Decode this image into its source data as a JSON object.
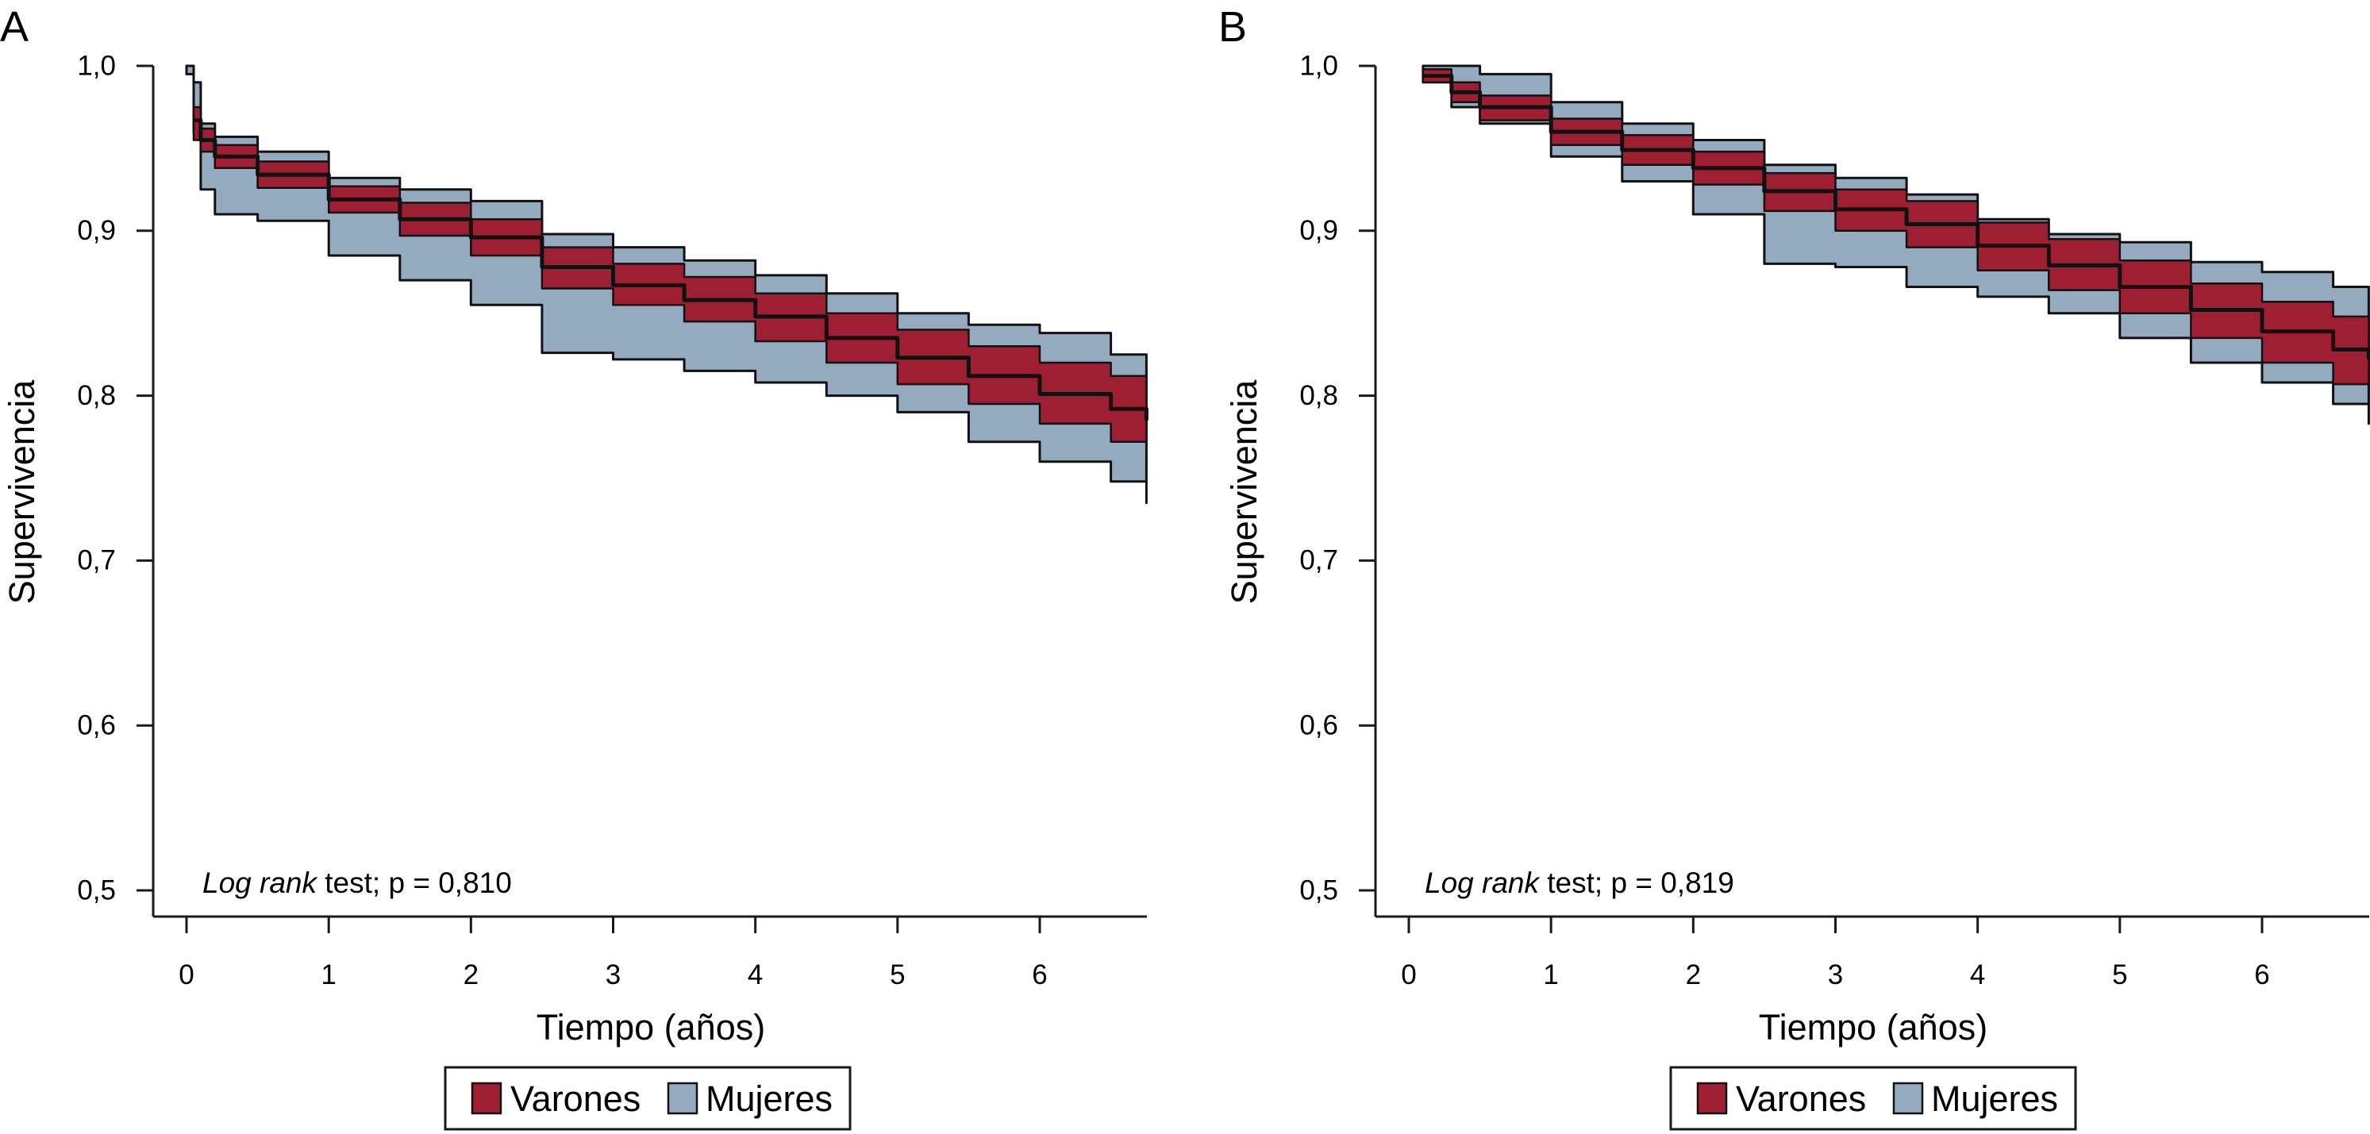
{
  "colors": {
    "varones": "#9e1f32",
    "mujeres": "#94aabf",
    "line": "#111111",
    "axis": "#1a1a1a"
  },
  "legend": {
    "varones": "Varones",
    "mujeres": "Mujeres"
  },
  "chart_data": [
    {
      "panel": "A",
      "type": "line",
      "title": "",
      "xlabel": "Tiempo (años)",
      "ylabel": "Supervivencia",
      "xlim": [
        -0.2,
        6.75
      ],
      "ylim": [
        0.48,
        1.0
      ],
      "xticks": [
        0,
        1,
        2,
        3,
        4,
        5,
        6
      ],
      "xtick_labels": [
        "0",
        "1",
        "2",
        "3",
        "4",
        "5",
        "6"
      ],
      "yticks": [
        0.5,
        0.6,
        0.7,
        0.8,
        0.9,
        1.0
      ],
      "ytick_labels": [
        "0,5",
        "0,6",
        "0,7",
        "0,8",
        "0,9",
        "1,0"
      ],
      "annotation": {
        "italic": "Log rank",
        "text": " test; p = 0,810"
      },
      "series": [
        {
          "name": "Mujeres",
          "x": [
            0.0,
            0.05,
            0.1,
            0.2,
            0.5,
            1.0,
            1.5,
            2.0,
            2.5,
            3.0,
            3.5,
            4.0,
            4.5,
            5.0,
            5.5,
            6.0,
            6.5,
            6.75
          ],
          "upper": [
            1.0,
            0.99,
            0.965,
            0.957,
            0.948,
            0.932,
            0.925,
            0.918,
            0.898,
            0.89,
            0.882,
            0.873,
            0.862,
            0.85,
            0.843,
            0.838,
            0.825,
            0.815
          ],
          "lower": [
            0.995,
            0.96,
            0.925,
            0.91,
            0.906,
            0.885,
            0.87,
            0.855,
            0.826,
            0.822,
            0.815,
            0.808,
            0.8,
            0.79,
            0.772,
            0.76,
            0.748,
            0.735
          ]
        },
        {
          "name": "Varones",
          "x": [
            0.05,
            0.1,
            0.2,
            0.5,
            1.0,
            1.5,
            2.0,
            2.5,
            3.0,
            3.5,
            4.0,
            4.5,
            5.0,
            5.5,
            6.0,
            6.5,
            6.75
          ],
          "upper": [
            0.975,
            0.962,
            0.952,
            0.942,
            0.927,
            0.917,
            0.907,
            0.89,
            0.88,
            0.872,
            0.862,
            0.85,
            0.84,
            0.83,
            0.82,
            0.812,
            0.805
          ],
          "lower": [
            0.955,
            0.948,
            0.938,
            0.926,
            0.911,
            0.897,
            0.885,
            0.865,
            0.855,
            0.845,
            0.833,
            0.82,
            0.807,
            0.795,
            0.783,
            0.772,
            0.765
          ],
          "y": [
            0.967,
            0.955,
            0.945,
            0.934,
            0.919,
            0.907,
            0.896,
            0.878,
            0.867,
            0.858,
            0.848,
            0.835,
            0.823,
            0.812,
            0.801,
            0.792,
            0.785
          ]
        }
      ]
    },
    {
      "panel": "B",
      "type": "line",
      "title": "",
      "xlabel": "Tiempo (años)",
      "ylabel": "Supervivencia",
      "xlim": [
        -0.2,
        6.75
      ],
      "ylim": [
        0.48,
        1.0
      ],
      "xticks": [
        0,
        1,
        2,
        3,
        4,
        5,
        6
      ],
      "xtick_labels": [
        "0",
        "1",
        "2",
        "3",
        "4",
        "5",
        "6"
      ],
      "yticks": [
        0.5,
        0.6,
        0.7,
        0.8,
        0.9,
        1.0
      ],
      "ytick_labels": [
        "0,5",
        "0,6",
        "0,7",
        "0,8",
        "0,9",
        "1,0"
      ],
      "annotation": {
        "italic": "Log rank",
        "text": " test; p = 0,819"
      },
      "series": [
        {
          "name": "Mujeres",
          "x": [
            0.1,
            0.3,
            0.5,
            1.0,
            1.5,
            2.0,
            2.5,
            3.0,
            3.5,
            4.0,
            4.5,
            5.0,
            5.5,
            6.0,
            6.5,
            6.75
          ],
          "upper": [
            1.0,
            1.0,
            0.995,
            0.978,
            0.965,
            0.955,
            0.94,
            0.932,
            0.922,
            0.907,
            0.898,
            0.893,
            0.881,
            0.875,
            0.866,
            0.855
          ],
          "lower": [
            0.99,
            0.975,
            0.965,
            0.945,
            0.93,
            0.91,
            0.88,
            0.878,
            0.866,
            0.86,
            0.85,
            0.835,
            0.82,
            0.808,
            0.795,
            0.783
          ]
        },
        {
          "name": "Varones",
          "x": [
            0.1,
            0.3,
            0.5,
            1.0,
            1.5,
            2.0,
            2.5,
            3.0,
            3.5,
            4.0,
            4.5,
            5.0,
            5.5,
            6.0,
            6.5,
            6.75
          ],
          "upper": [
            0.998,
            0.99,
            0.982,
            0.968,
            0.958,
            0.948,
            0.935,
            0.925,
            0.918,
            0.905,
            0.895,
            0.882,
            0.868,
            0.857,
            0.848,
            0.843
          ],
          "lower": [
            0.99,
            0.978,
            0.967,
            0.952,
            0.94,
            0.928,
            0.912,
            0.9,
            0.89,
            0.876,
            0.864,
            0.85,
            0.835,
            0.82,
            0.807,
            0.8
          ],
          "y": [
            0.994,
            0.984,
            0.975,
            0.96,
            0.949,
            0.938,
            0.924,
            0.913,
            0.904,
            0.891,
            0.879,
            0.866,
            0.852,
            0.839,
            0.828,
            0.822
          ]
        }
      ]
    }
  ]
}
